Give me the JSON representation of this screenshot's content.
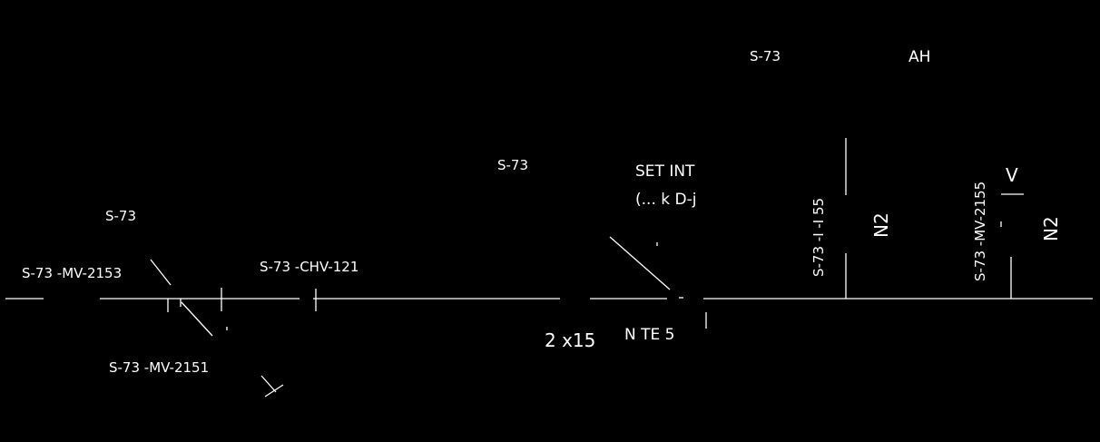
{
  "drawing": {
    "background": "#000000",
    "line_color": "#ffffff",
    "labels": {
      "s73_top": "S-73",
      "ah": "AH",
      "s73_mid": "S-73",
      "setpoint_line1": "SET   INT",
      "setpoint_line2": "(...  k  D-j",
      "s73_valve_upper": "S-73",
      "mv2153": "S-73 -MV-2153",
      "chv121": "S-73 -CHV-121",
      "mv2151": "S-73 -MV-2151",
      "pipe_size": "2 x15",
      "note5": "N  TE 5",
      "s73_i55": "S-73 -I  -I 55",
      "n2_left": "N2",
      "mv2155": "S-73 -MV-2155",
      "v_mark": "V",
      "n2_right": "N2"
    }
  }
}
